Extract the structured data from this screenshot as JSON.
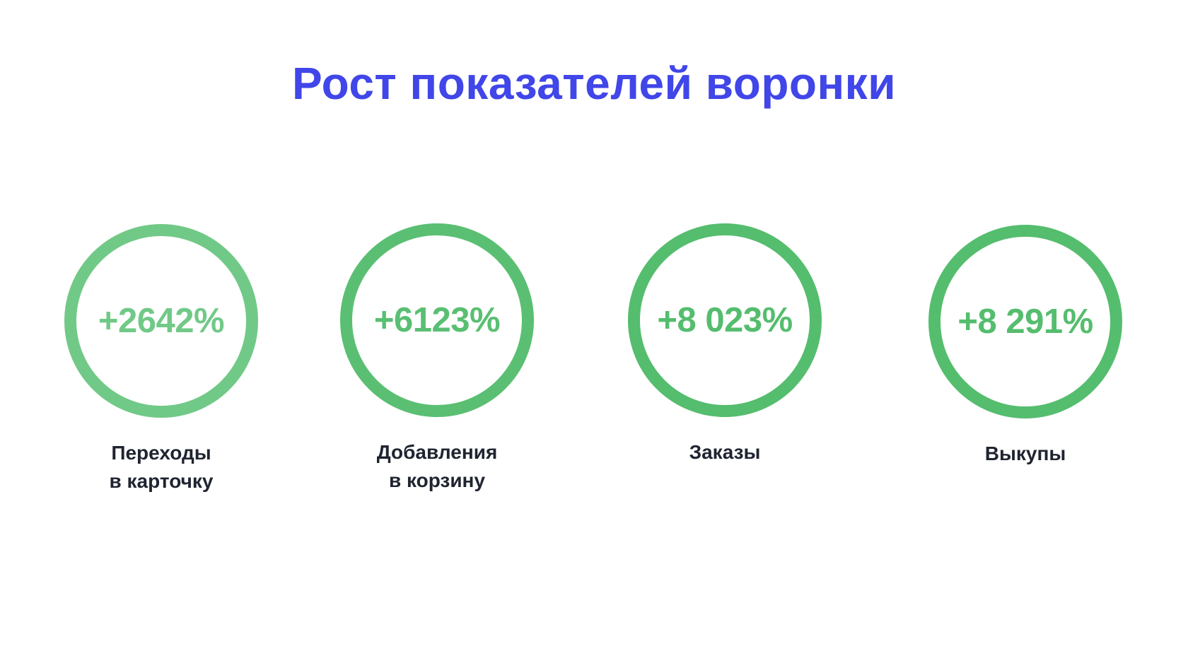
{
  "slide": {
    "title": "Рост показателей воронки",
    "title_color": "#4046e8"
  },
  "metrics": [
    {
      "value": "+2642%",
      "label_line1": "Переходы",
      "label_line2": "в карточку",
      "color": "#71c987"
    },
    {
      "value": "+6123%",
      "label_line1": "Добавления",
      "label_line2": "в корзину",
      "color": "#5abf72"
    },
    {
      "value": "+8 023%",
      "label_line1": "Заказы",
      "label_line2": "",
      "color": "#55bd6e"
    },
    {
      "value": "+8 291%",
      "label_line1": "Выкупы",
      "label_line2": "",
      "color": "#55bd6e"
    }
  ]
}
